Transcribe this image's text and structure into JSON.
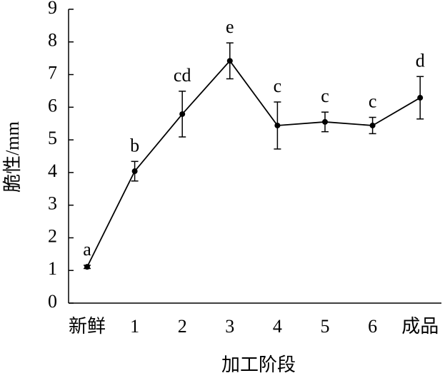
{
  "chart_data": {
    "type": "line",
    "x_label": "加工阶段",
    "y_label": "脆性/mm",
    "categories": [
      "新鲜",
      "1",
      "2",
      "3",
      "4",
      "5",
      "6",
      "成品"
    ],
    "values": [
      1.11,
      4.04,
      5.79,
      7.42,
      5.44,
      5.55,
      5.44,
      6.29
    ],
    "errors": [
      0.05,
      0.3,
      0.7,
      0.55,
      0.72,
      0.3,
      0.25,
      0.65
    ],
    "annotations": [
      "a",
      "b",
      "cd",
      "e",
      "c",
      "c",
      "c",
      "d"
    ],
    "color": "#000000",
    "ylim": [
      0,
      9
    ],
    "yticks": [
      0,
      1,
      2,
      3,
      4,
      5,
      6,
      7,
      8,
      9
    ],
    "grid": false
  }
}
